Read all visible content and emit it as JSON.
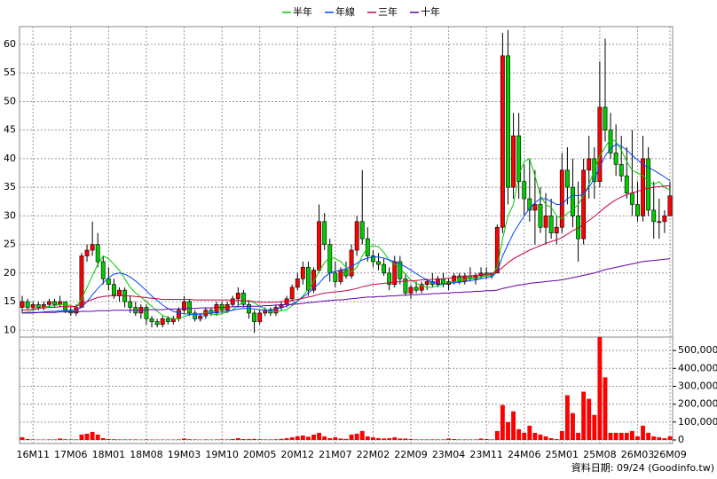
{
  "chart_data": {
    "type": "candlestick",
    "categories": [
      null,
      null,
      "16M11",
      null,
      null,
      null,
      null,
      null,
      null,
      "17M06",
      null,
      null,
      null,
      null,
      null,
      null,
      "18M01",
      null,
      null,
      null,
      null,
      null,
      null,
      "18M08",
      null,
      null,
      null,
      null,
      null,
      null,
      "19M03",
      null,
      null,
      null,
      null,
      null,
      null,
      "19M10",
      null,
      null,
      null,
      null,
      null,
      null,
      "20M05",
      null,
      null,
      null,
      null,
      null,
      null,
      "20M12",
      null,
      null,
      null,
      null,
      null,
      null,
      "21M07",
      null,
      null,
      null,
      null,
      null,
      null,
      "22M02",
      null,
      null,
      null,
      null,
      null,
      null,
      "22M09",
      null,
      null,
      null,
      null,
      null,
      null,
      "23M04",
      null,
      null,
      null,
      null,
      null,
      null,
      "23M11",
      null,
      null,
      null,
      null,
      null,
      null,
      "24M06",
      null,
      null,
      null,
      null,
      null,
      null,
      "25M01",
      null,
      null,
      null,
      null,
      null,
      null,
      "25M08",
      null,
      null,
      null,
      null,
      null,
      null,
      "26M03",
      null,
      null,
      null,
      null,
      null,
      "26M09"
    ],
    "open": [
      14,
      15,
      14,
      14.5,
      14,
      14.5,
      15,
      14.5,
      15,
      13.5,
      13,
      14,
      23,
      24,
      25,
      22,
      19,
      18,
      16,
      17,
      15,
      14,
      13,
      14,
      12,
      11.5,
      11,
      12,
      11.5,
      12,
      13.5,
      15,
      13,
      12,
      12.5,
      13.5,
      13,
      14.5,
      13.5,
      14.5,
      15.5,
      16.5,
      14.5,
      13,
      11.5,
      13,
      13.5,
      13,
      14,
      14.5,
      15.5,
      17.5,
      19,
      21,
      17,
      20.5,
      29,
      25,
      20,
      18.5,
      20.5,
      19.5,
      24,
      29,
      26,
      23,
      22,
      21.5,
      20,
      18,
      22,
      19,
      16.5,
      17.5,
      17,
      18,
      18.5,
      18,
      19,
      18,
      18.5,
      19.5,
      18.5,
      19.5,
      19,
      19.5,
      20,
      19.5,
      20,
      28,
      58,
      35,
      44,
      36,
      33,
      31,
      32,
      28,
      30,
      27,
      28,
      38,
      35,
      30,
      26,
      38,
      40,
      36,
      49,
      45,
      41,
      39,
      37,
      34,
      32,
      30,
      40,
      31,
      29,
      29,
      30
    ],
    "high": [
      16,
      15.5,
      15,
      15,
      15,
      15.5,
      15.5,
      16,
      15,
      14,
      14.5,
      23.5,
      25,
      29,
      27,
      23,
      21,
      19,
      17.5,
      17.5,
      16,
      15,
      14.5,
      14.5,
      12.5,
      12,
      12.5,
      12.5,
      12.5,
      14,
      16,
      15.5,
      13.5,
      13,
      14,
      14,
      15,
      15,
      15,
      16,
      17.5,
      17,
      15,
      13.5,
      13.5,
      14,
      14,
      14.5,
      15,
      16,
      18,
      20,
      22,
      22,
      21,
      32,
      30.5,
      26,
      22,
      21,
      22,
      25,
      30,
      38,
      28,
      24,
      23.5,
      22.5,
      21,
      23,
      23,
      20,
      18,
      18.5,
      18.5,
      19,
      20,
      19.5,
      20,
      19,
      20,
      20,
      20,
      21,
      20,
      21,
      21,
      20,
      28.5,
      62,
      62.5,
      48,
      48,
      39,
      40,
      38,
      35,
      34,
      33,
      30,
      41,
      42,
      40,
      36,
      40,
      44,
      42,
      57,
      61,
      48,
      46,
      44,
      42,
      45,
      36,
      44,
      42,
      36,
      33,
      31,
      36
    ],
    "low": [
      13,
      13.5,
      13.5,
      13.5,
      13.5,
      14,
      14,
      14,
      13,
      12.5,
      12.5,
      14,
      22,
      23,
      21,
      18,
      17,
      15.5,
      15,
      14,
      13,
      12.5,
      12,
      11,
      10.5,
      10.5,
      10.5,
      11,
      11,
      11.5,
      13,
      12.5,
      11.5,
      11.5,
      12,
      12.5,
      12.5,
      13,
      13,
      14,
      14,
      14,
      12,
      9.5,
      11,
      12.5,
      12.5,
      12.5,
      13.5,
      14,
      15,
      17,
      18,
      16,
      16.5,
      20,
      24,
      18.5,
      17.5,
      18,
      19,
      19,
      23,
      25,
      22,
      21,
      20.5,
      19.5,
      17,
      17.5,
      18,
      16,
      15.5,
      16.5,
      16.5,
      17,
      17.5,
      17.5,
      17.5,
      17,
      18,
      18,
      18,
      18.5,
      18,
      19,
      19,
      19,
      20,
      27,
      32,
      33,
      33,
      30,
      29,
      25,
      27,
      25,
      26,
      25,
      27,
      32,
      28,
      22,
      25,
      33,
      33,
      35,
      43,
      40,
      37,
      36,
      33,
      30,
      29,
      29,
      30,
      26,
      26,
      27,
      30
    ],
    "close": [
      15,
      14,
      14.5,
      14,
      14.5,
      15,
      14.5,
      15,
      13.5,
      13,
      14,
      23,
      24,
      25,
      22,
      19,
      18,
      16,
      17,
      15,
      14,
      13,
      14,
      12,
      11.5,
      11,
      12,
      11.5,
      12,
      13.5,
      15,
      13,
      12,
      12.5,
      13.5,
      13,
      14.5,
      13.5,
      14.5,
      15.5,
      16.5,
      14.5,
      13,
      11.5,
      13,
      13.5,
      13,
      14,
      14.5,
      15.5,
      17.5,
      19,
      21,
      17,
      20.5,
      29,
      25,
      20,
      18.5,
      20.5,
      19.5,
      24,
      29,
      26,
      23,
      22,
      21.5,
      20,
      18,
      22,
      19,
      16.5,
      17.5,
      17,
      18,
      18.5,
      18,
      19,
      18,
      18.5,
      19.5,
      18.5,
      19.5,
      19,
      19.5,
      20,
      19.5,
      20,
      28,
      58,
      35,
      44,
      36,
      33,
      31,
      32,
      28,
      30,
      27,
      28,
      38,
      35,
      30,
      26,
      38,
      40,
      36,
      49,
      45,
      41,
      39,
      37,
      34,
      32,
      30,
      40,
      31,
      29,
      29,
      30,
      33.5
    ],
    "up_color": "#ff0000",
    "down_color": "#00cc00",
    "ylim": [
      8.8,
      63.1
    ],
    "yticks": [
      10,
      15,
      20,
      25,
      30,
      35,
      40,
      45,
      50,
      55,
      60
    ],
    "grid": true,
    "series": [
      {
        "name": "半年",
        "color": "#00cc00",
        "values": [
          13.0,
          13.2,
          13.5,
          13.8,
          14.0,
          14.2,
          14.3,
          14.5,
          14.5,
          14.3,
          14.0,
          15.5,
          17.5,
          19.5,
          21.5,
          23.0,
          22.5,
          21.5,
          20.5,
          19.0,
          17.5,
          16.5,
          15.8,
          15.0,
          14.2,
          13.3,
          12.6,
          12.2,
          12.0,
          12.0,
          12.4,
          12.7,
          12.8,
          12.9,
          13.0,
          12.8,
          12.7,
          12.9,
          13.2,
          13.6,
          14.3,
          15.0,
          15.2,
          14.8,
          14.2,
          13.7,
          13.3,
          13.2,
          13.4,
          13.6,
          14.3,
          15.0,
          16.0,
          17.2,
          18.5,
          20.3,
          21.8,
          22.8,
          22.5,
          22.0,
          21.0,
          20.2,
          21.0,
          23.0,
          24.5,
          24.8,
          24.6,
          23.6,
          22.2,
          21.5,
          20.8,
          19.8,
          18.8,
          18.2,
          17.8,
          17.5,
          17.5,
          17.8,
          18.0,
          18.3,
          18.5,
          18.7,
          18.8,
          19.0,
          19.1,
          19.3,
          19.5,
          19.6,
          21.0,
          26.0,
          30.0,
          32.0,
          37.0,
          39.5,
          40.0,
          37.0,
          33.5,
          32.0,
          31.5,
          30.0,
          29.5,
          30.5,
          31.0,
          32.0,
          33.5,
          35.5,
          38.0,
          40.5,
          42.0,
          43.5,
          43.0,
          41.5,
          39.5,
          38.0,
          37.5,
          37.0,
          36.0,
          35.5,
          36.0,
          35.0,
          34.5
        ]
      },
      {
        "name": "年線",
        "color": "#0044ff",
        "values": [
          13.0,
          13.0,
          13.1,
          13.1,
          13.2,
          13.3,
          13.3,
          13.4,
          13.4,
          13.4,
          13.5,
          14.0,
          15.0,
          16.2,
          17.3,
          18.3,
          19.2,
          19.8,
          20.0,
          19.8,
          19.3,
          18.6,
          17.8,
          16.9,
          16.0,
          15.2,
          14.4,
          13.8,
          13.3,
          13.0,
          12.9,
          12.8,
          12.8,
          12.8,
          12.9,
          13.0,
          13.1,
          13.2,
          13.3,
          13.5,
          13.7,
          13.8,
          13.8,
          13.7,
          13.6,
          13.5,
          13.6,
          13.7,
          13.9,
          14.2,
          14.6,
          15.1,
          15.8,
          16.5,
          17.3,
          18.2,
          19.3,
          20.0,
          20.3,
          20.5,
          20.8,
          21.2,
          21.7,
          22.3,
          22.6,
          22.8,
          22.8,
          22.6,
          22.3,
          22.0,
          21.6,
          21.1,
          20.5,
          19.9,
          19.3,
          18.8,
          18.4,
          18.2,
          18.1,
          18.2,
          18.3,
          18.4,
          18.5,
          18.7,
          18.8,
          19.0,
          19.2,
          19.4,
          20.2,
          23.0,
          25.0,
          27.0,
          28.5,
          30.0,
          31.3,
          32.3,
          33.0,
          33.0,
          32.5,
          32.0,
          32.0,
          33.0,
          33.6,
          33.5,
          33.8,
          35.0,
          36.5,
          38.5,
          40.5,
          41.8,
          42.5,
          42.2,
          41.5,
          40.6,
          39.8,
          39.0,
          38.4,
          38.0,
          37.4,
          36.8,
          36.2
        ]
      },
      {
        "name": "三年",
        "color": "#cc0044",
        "values": [
          13.5,
          13.6,
          13.7,
          13.8,
          13.9,
          14.0,
          14.0,
          14.1,
          14.1,
          14.1,
          14.2,
          14.6,
          15.0,
          15.4,
          15.7,
          15.9,
          16.0,
          16.1,
          16.1,
          16.0,
          16.0,
          15.9,
          15.8,
          15.7,
          15.6,
          15.5,
          15.4,
          15.4,
          15.4,
          15.4,
          15.4,
          15.4,
          15.3,
          15.3,
          15.3,
          15.3,
          15.3,
          15.3,
          15.3,
          15.2,
          15.2,
          15.2,
          15.1,
          15.0,
          14.9,
          14.9,
          14.9,
          14.9,
          15.0,
          15.1,
          15.2,
          15.4,
          15.6,
          15.8,
          16.0,
          16.3,
          16.5,
          16.6,
          16.7,
          16.8,
          16.9,
          17.1,
          17.3,
          17.6,
          17.8,
          18.0,
          18.1,
          18.2,
          18.3,
          18.4,
          18.5,
          18.6,
          18.6,
          18.7,
          18.8,
          18.8,
          18.9,
          18.9,
          19.0,
          19.1,
          19.2,
          19.3,
          19.4,
          19.5,
          19.6,
          19.7,
          19.8,
          19.9,
          20.2,
          21.0,
          21.8,
          22.5,
          23.0,
          23.5,
          24.0,
          24.4,
          24.8,
          25.2,
          25.5,
          25.8,
          26.2,
          26.8,
          27.4,
          27.9,
          28.5,
          29.2,
          29.9,
          30.7,
          31.5,
          32.2,
          32.8,
          33.3,
          33.7,
          34.0,
          34.3,
          34.6,
          34.8,
          35.0,
          35.1,
          35.2,
          35.3
        ]
      },
      {
        "name": "十年",
        "color": "#6600aa",
        "values": [
          13.0,
          13.0,
          13.0,
          13.1,
          13.1,
          13.1,
          13.1,
          13.2,
          13.2,
          13.2,
          13.2,
          13.3,
          13.3,
          13.3,
          13.4,
          13.4,
          13.4,
          13.5,
          13.5,
          13.5,
          13.5,
          13.5,
          13.5,
          13.6,
          13.6,
          13.6,
          13.6,
          13.7,
          13.7,
          13.7,
          13.8,
          13.8,
          13.8,
          13.9,
          13.9,
          13.9,
          14.0,
          14.0,
          14.0,
          14.1,
          14.1,
          14.1,
          14.2,
          14.2,
          14.2,
          14.3,
          14.3,
          14.4,
          14.4,
          14.5,
          14.5,
          14.6,
          14.7,
          14.8,
          14.9,
          15.0,
          15.1,
          15.2,
          15.3,
          15.3,
          15.4,
          15.5,
          15.6,
          15.7,
          15.8,
          15.8,
          15.9,
          15.9,
          16.0,
          16.0,
          16.1,
          16.1,
          16.2,
          16.2,
          16.3,
          16.3,
          16.4,
          16.4,
          16.5,
          16.5,
          16.6,
          16.6,
          16.7,
          16.7,
          16.8,
          16.8,
          16.9,
          16.9,
          17.0,
          17.3,
          17.5,
          17.7,
          17.9,
          18.0,
          18.2,
          18.3,
          18.4,
          18.5,
          18.6,
          18.7,
          18.8,
          19.0,
          19.2,
          19.4,
          19.6,
          19.8,
          20.0,
          20.3,
          20.6,
          20.8,
          21.0,
          21.2,
          21.4,
          21.6,
          21.8,
          22.0,
          22.1,
          22.2,
          22.3,
          22.4,
          22.5
        ]
      }
    ],
    "volume": {
      "color": "#ff0000",
      "ylim": [
        0,
        575000
      ],
      "yticks": [
        0,
        {
          "value": 100000,
          "label": "100,000"
        },
        {
          "value": 200000,
          "label": "200,000"
        },
        {
          "value": 300000,
          "label": "300,000"
        },
        {
          "value": 400000,
          "label": "400,000"
        },
        {
          "value": 500000,
          "label": "500,000"
        }
      ],
      "values": [
        15000,
        5000,
        3000,
        2000,
        2000,
        3000,
        3000,
        8000,
        4000,
        3000,
        3000,
        30000,
        35000,
        45000,
        30000,
        10000,
        5000,
        4000,
        3000,
        3000,
        3000,
        3000,
        2000,
        3000,
        2000,
        2000,
        2000,
        2000,
        2000,
        3000,
        8000,
        4000,
        3000,
        2000,
        3000,
        2000,
        3000,
        3000,
        3000,
        5000,
        10000,
        5000,
        5000,
        6000,
        4000,
        3000,
        3000,
        4000,
        6000,
        10000,
        15000,
        20000,
        25000,
        18000,
        30000,
        40000,
        20000,
        10000,
        15000,
        8000,
        6000,
        30000,
        35000,
        50000,
        20000,
        15000,
        10000,
        8000,
        10000,
        15000,
        8000,
        8000,
        5000,
        3000,
        3000,
        3000,
        3000,
        3000,
        3000,
        8000,
        5000,
        3000,
        3000,
        3000,
        3000,
        8000,
        5000,
        3000,
        50000,
        195000,
        100000,
        160000,
        60000,
        40000,
        80000,
        40000,
        30000,
        20000,
        10000,
        5000,
        50000,
        250000,
        150000,
        40000,
        270000,
        230000,
        140000,
        575000,
        350000,
        40000,
        40000,
        40000,
        40000,
        50000,
        20000,
        80000,
        40000,
        20000,
        15000,
        10000,
        20000
      ]
    },
    "source": "資料日期: 09/24 (Goodinfo.tw)"
  }
}
